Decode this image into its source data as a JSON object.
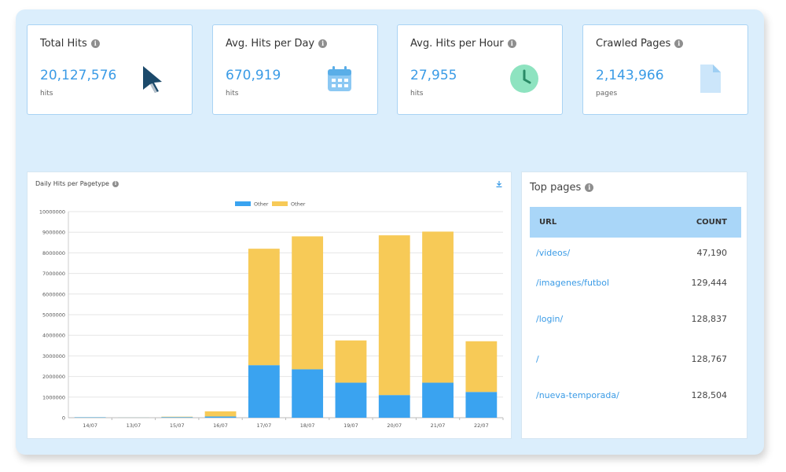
{
  "cards": [
    {
      "title": "Total Hits",
      "value": "20,127,576",
      "unit": "hits",
      "icon": "cursor-icon"
    },
    {
      "title": "Avg. Hits per Day",
      "value": "670,919",
      "unit": "hits",
      "icon": "calendar-icon"
    },
    {
      "title": "Avg. Hits per Hour",
      "value": "27,955",
      "unit": "hits",
      "icon": "clock-icon"
    },
    {
      "title": "Crawled Pages",
      "value": "2,143,966",
      "unit": "pages",
      "icon": "document-icon"
    }
  ],
  "info_glyph": "i",
  "chart": {
    "title": "Daily Hits per Pagetype"
  },
  "chart_data": {
    "type": "bar",
    "stacked": true,
    "categories": [
      "14/07",
      "13/07",
      "15/07",
      "16/07",
      "17/07",
      "18/07",
      "19/07",
      "20/07",
      "21/07",
      "22/07"
    ],
    "series": [
      {
        "name": "Other",
        "color": "#3aa3f0",
        "values": [
          20000,
          5000,
          30000,
          60000,
          2550000,
          2350000,
          1700000,
          1100000,
          1700000,
          1250000
        ]
      },
      {
        "name": "Other",
        "color": "#f7ca57",
        "values": [
          5000,
          3000,
          20000,
          250000,
          5650000,
          6450000,
          2050000,
          7750000,
          7330000,
          2460000
        ]
      }
    ],
    "yticks": [
      "0",
      "1000000",
      "2000000",
      "3000000",
      "4000000",
      "5000000",
      "6000000",
      "7000000",
      "8000000",
      "9000000",
      "10000000"
    ],
    "ylim": [
      0,
      10000000
    ],
    "grid": true,
    "legend": "top"
  },
  "top_pages": {
    "title": "Top pages",
    "columns": {
      "url": "URL",
      "count": "COUNT"
    },
    "rows": [
      {
        "url": "/videos/",
        "count": "47,190"
      },
      {
        "url": "/imagenes/futbol",
        "count": "129,444"
      },
      {
        "url": "/login/",
        "count": "128,837"
      },
      {
        "url": "/",
        "count": "128,767"
      },
      {
        "url": "/nueva-temporada/",
        "count": "128,504"
      }
    ]
  }
}
